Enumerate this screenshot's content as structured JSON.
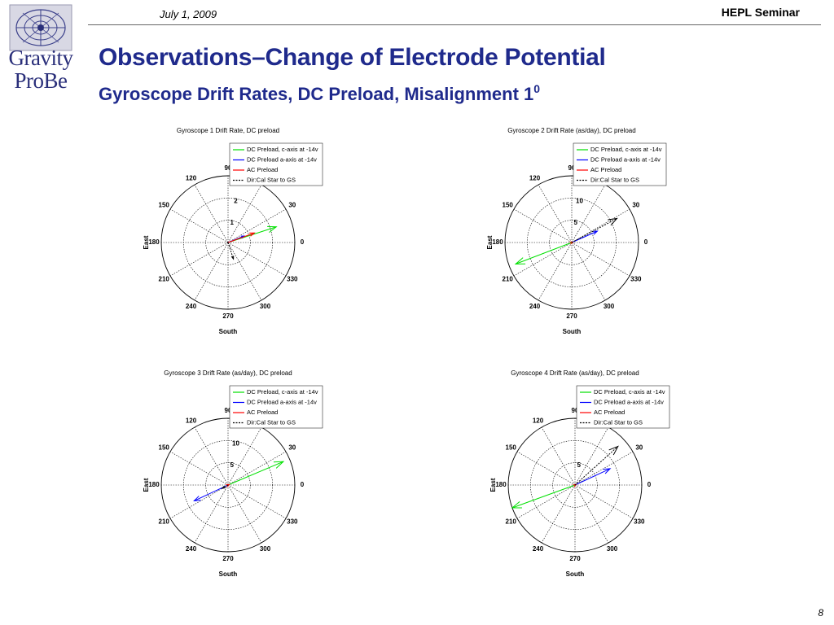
{
  "header": {
    "date": "July 1, 2009",
    "seminar": "HEPL Seminar"
  },
  "logo": {
    "word1": "Gravity",
    "word2": "ProBe"
  },
  "slide": {
    "title": "Observations–Change of Electrode Potential",
    "subtitle": "Gyroscope Drift Rates, DC Preload, Misalignment 1",
    "subtitle_sup": "0",
    "page_number": "8"
  },
  "colors": {
    "title": "#1f2a8c",
    "green": "#00e000",
    "blue": "#0000ff",
    "red": "#ff0000",
    "black": "#000000"
  },
  "chart_data": [
    {
      "type": "polar",
      "title": "Gyroscope 1 Drift Rate, DC preload",
      "ylabel": "East",
      "xlabel": "South",
      "rmax": 2.5,
      "radial_ticks": [
        "1",
        "2"
      ],
      "angle_labels": [
        "90",
        "120",
        "150",
        "180",
        "210",
        "240",
        "270",
        "300",
        "330",
        "0",
        "30"
      ],
      "legend": [
        "DC Preload, c-axis at -14v",
        "DC Preload a-axis at -14v",
        "AC Preload",
        "Dir:Cal Star to GS"
      ],
      "legend_position": "top-right",
      "series": [
        {
          "name": "DC Preload, c-axis at -14v",
          "color": "green",
          "r": 1.9,
          "theta": 18
        },
        {
          "name": "DC Preload a-axis at -14v",
          "color": "blue",
          "r": 0.65,
          "theta": 22
        },
        {
          "name": "AC Preload",
          "color": "red",
          "r": 1.05,
          "theta": 20
        },
        {
          "name": "Dir:Cal Star to GS",
          "color": "black",
          "r": 0.65,
          "theta": 288
        }
      ]
    },
    {
      "type": "polar",
      "title": "Gyroscope 2 Drift Rate (as/day), DC preload",
      "ylabel": "East",
      "xlabel": "South",
      "rmax": 15,
      "radial_ticks": [
        "5",
        "10"
      ],
      "angle_labels": [
        "90",
        "120",
        "150",
        "180",
        "210",
        "240",
        "270",
        "300",
        "330",
        "0",
        "30"
      ],
      "legend": [
        "DC Preload, c-axis at -14v",
        "DC Preload a-axis at -14v",
        "AC Preload",
        "Dir:Cal Star to GS"
      ],
      "legend_position": "top-right",
      "series": [
        {
          "name": "DC Preload, c-axis at -14v",
          "color": "green",
          "r": 13.5,
          "theta": 201
        },
        {
          "name": "DC Preload a-axis at -14v",
          "color": "blue",
          "r": 6.3,
          "theta": 24
        },
        {
          "name": "AC Preload",
          "color": "red",
          "r": 0.3,
          "theta": 20
        },
        {
          "name": "Dir:Cal Star to GS",
          "color": "black",
          "r": 11.5,
          "theta": 28
        }
      ]
    },
    {
      "type": "polar",
      "title": "Gyroscope 3 Drift Rate (as/day), DC preload",
      "ylabel": "East",
      "xlabel": "South",
      "rmax": 15,
      "radial_ticks": [
        "5",
        "10"
      ],
      "angle_labels": [
        "90",
        "120",
        "150",
        "180",
        "210",
        "240",
        "270",
        "300",
        "330",
        "0",
        "30"
      ],
      "legend": [
        "DC Preload, c-axis at -14v",
        "DC Preload a-axis at -14v",
        "AC Preload",
        "Dir:Cal Star to GS"
      ],
      "legend_position": "top-right",
      "series": [
        {
          "name": "DC Preload, c-axis at -14v",
          "color": "green",
          "r": 13.5,
          "theta": 23
        },
        {
          "name": "DC Preload a-axis at -14v",
          "color": "blue",
          "r": 8.4,
          "theta": 205
        },
        {
          "name": "AC Preload",
          "color": "red",
          "r": 0.3,
          "theta": 25
        },
        {
          "name": "Dir:Cal Star to GS",
          "color": "black",
          "r": 1.5,
          "theta": 210
        }
      ]
    },
    {
      "type": "polar",
      "title": "Gyroscope 4 Drift Rate (as/day), DC preload",
      "ylabel": "East",
      "xlabel": "South",
      "rmax": 15,
      "radial_ticks": [
        "5"
      ],
      "angle_labels": [
        "90",
        "120",
        "150",
        "180",
        "210",
        "240",
        "270",
        "300",
        "330",
        "0",
        "30"
      ],
      "legend": [
        "DC Preload, c-axis at -14v",
        "DC Preload a-axis at -14v",
        "AC Preload",
        "Dir:Cal Star to GS"
      ],
      "legend_position": "top-right",
      "series": [
        {
          "name": "DC Preload, c-axis at -14v",
          "color": "green",
          "r": 15,
          "theta": 200
        },
        {
          "name": "DC Preload a-axis at -14v",
          "color": "blue",
          "r": 8.7,
          "theta": 25
        },
        {
          "name": "AC Preload",
          "color": "red",
          "r": 0.3,
          "theta": 30
        },
        {
          "name": "Dir:Cal Star to GS",
          "color": "black",
          "r": 13,
          "theta": 42
        }
      ]
    }
  ]
}
